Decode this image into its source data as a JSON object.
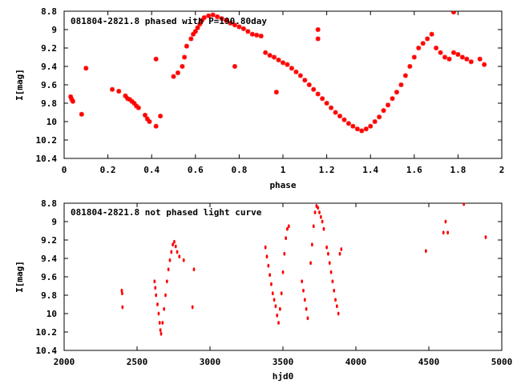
{
  "chart_data": [
    {
      "type": "scatter",
      "title": "081804-2821.8 phased with P=190.80day",
      "xlabel": "phase",
      "ylabel": "I[mag]",
      "xlim": [
        0,
        2
      ],
      "ylim": [
        10.4,
        8.8
      ],
      "y_inverted": true,
      "xticks": [
        "0",
        "0.2",
        "0.4",
        "0.6",
        "0.8",
        "1",
        "1.2",
        "1.4",
        "1.6",
        "1.8",
        "2"
      ],
      "yticks": [
        "8.8",
        "9",
        "9.2",
        "9.4",
        "9.6",
        "9.8",
        "10",
        "10.2",
        "10.4"
      ],
      "marker": "star",
      "color": "#ff0000",
      "grid": false,
      "points": [
        [
          0.03,
          9.73
        ],
        [
          0.035,
          9.76
        ],
        [
          0.04,
          9.78
        ],
        [
          0.08,
          9.92
        ],
        [
          0.1,
          9.42
        ],
        [
          0.22,
          9.65
        ],
        [
          0.25,
          9.67
        ],
        [
          0.28,
          9.72
        ],
        [
          0.29,
          9.75
        ],
        [
          0.3,
          9.76
        ],
        [
          0.31,
          9.78
        ],
        [
          0.32,
          9.8
        ],
        [
          0.33,
          9.83
        ],
        [
          0.34,
          9.85
        ],
        [
          0.37,
          9.93
        ],
        [
          0.38,
          9.97
        ],
        [
          0.39,
          10.0
        ],
        [
          0.42,
          10.05
        ],
        [
          0.42,
          9.32
        ],
        [
          0.44,
          9.94
        ],
        [
          0.5,
          9.51
        ],
        [
          0.52,
          9.47
        ],
        [
          0.54,
          9.4
        ],
        [
          0.55,
          9.3
        ],
        [
          0.56,
          9.18
        ],
        [
          0.58,
          9.1
        ],
        [
          0.59,
          9.05
        ],
        [
          0.6,
          9.02
        ],
        [
          0.61,
          8.98
        ],
        [
          0.62,
          8.94
        ],
        [
          0.63,
          8.9
        ],
        [
          0.64,
          8.87
        ],
        [
          0.66,
          8.85
        ],
        [
          0.68,
          8.84
        ],
        [
          0.7,
          8.86
        ],
        [
          0.72,
          8.88
        ],
        [
          0.74,
          8.9
        ],
        [
          0.76,
          8.93
        ],
        [
          0.78,
          8.95
        ],
        [
          0.8,
          8.97
        ],
        [
          0.82,
          8.99
        ],
        [
          0.84,
          9.02
        ],
        [
          0.86,
          9.05
        ],
        [
          0.88,
          9.06
        ],
        [
          0.9,
          9.07
        ],
        [
          0.78,
          9.4
        ],
        [
          0.92,
          9.25
        ],
        [
          0.94,
          9.28
        ],
        [
          0.96,
          9.3
        ],
        [
          0.97,
          9.68
        ],
        [
          0.98,
          9.33
        ],
        [
          1.0,
          9.36
        ],
        [
          1.02,
          9.38
        ],
        [
          1.04,
          9.42
        ],
        [
          1.06,
          9.46
        ],
        [
          1.08,
          9.5
        ],
        [
          1.1,
          9.55
        ],
        [
          1.12,
          9.6
        ],
        [
          1.14,
          9.65
        ],
        [
          1.16,
          9.7
        ],
        [
          1.16,
          9.0
        ],
        [
          1.16,
          9.1
        ],
        [
          1.18,
          9.75
        ],
        [
          1.2,
          9.8
        ],
        [
          1.22,
          9.85
        ],
        [
          1.24,
          9.9
        ],
        [
          1.26,
          9.94
        ],
        [
          1.28,
          9.98
        ],
        [
          1.3,
          10.02
        ],
        [
          1.32,
          10.05
        ],
        [
          1.34,
          10.08
        ],
        [
          1.36,
          10.1
        ],
        [
          1.38,
          10.08
        ],
        [
          1.4,
          10.05
        ],
        [
          1.42,
          10.0
        ],
        [
          1.44,
          9.95
        ],
        [
          1.46,
          9.88
        ],
        [
          1.48,
          9.82
        ],
        [
          1.5,
          9.75
        ],
        [
          1.52,
          9.68
        ],
        [
          1.54,
          9.6
        ],
        [
          1.56,
          9.5
        ],
        [
          1.58,
          9.4
        ],
        [
          1.6,
          9.3
        ],
        [
          1.62,
          9.2
        ],
        [
          1.64,
          9.15
        ],
        [
          1.66,
          9.1
        ],
        [
          1.68,
          9.05
        ],
        [
          1.7,
          9.2
        ],
        [
          1.72,
          9.25
        ],
        [
          1.74,
          9.3
        ],
        [
          1.76,
          9.32
        ],
        [
          1.78,
          9.25
        ],
        [
          1.78,
          8.81
        ],
        [
          1.8,
          9.27
        ],
        [
          1.82,
          9.3
        ],
        [
          1.84,
          9.32
        ],
        [
          1.86,
          9.35
        ],
        [
          1.9,
          9.32
        ],
        [
          1.92,
          9.38
        ]
      ]
    },
    {
      "type": "scatter",
      "title": "081804-2821.8 not phased light curve",
      "xlabel": "hjd0",
      "ylabel": "I[mag]",
      "xlim": [
        2000,
        5000
      ],
      "ylim": [
        10.4,
        8.8
      ],
      "y_inverted": true,
      "xticks": [
        "2000",
        "2500",
        "3000",
        "3500",
        "4000",
        "4500",
        "5000"
      ],
      "yticks": [
        "8.8",
        "9",
        "9.2",
        "9.4",
        "9.6",
        "9.8",
        "10",
        "10.2",
        "10.4"
      ],
      "marker": "dot",
      "color": "#ff0000",
      "grid": false,
      "points": [
        [
          2395,
          9.75
        ],
        [
          2398,
          9.78
        ],
        [
          2400,
          9.93
        ],
        [
          2620,
          9.65
        ],
        [
          2625,
          9.72
        ],
        [
          2630,
          9.8
        ],
        [
          2640,
          9.9
        ],
        [
          2648,
          10.0
        ],
        [
          2655,
          10.1
        ],
        [
          2660,
          10.18
        ],
        [
          2665,
          10.22
        ],
        [
          2675,
          10.1
        ],
        [
          2685,
          9.95
        ],
        [
          2695,
          9.8
        ],
        [
          2705,
          9.65
        ],
        [
          2715,
          9.52
        ],
        [
          2725,
          9.42
        ],
        [
          2735,
          9.33
        ],
        [
          2745,
          9.25
        ],
        [
          2755,
          9.22
        ],
        [
          2765,
          9.27
        ],
        [
          2775,
          9.33
        ],
        [
          2790,
          9.38
        ],
        [
          2820,
          9.42
        ],
        [
          2880,
          9.93
        ],
        [
          2890,
          9.52
        ],
        [
          3380,
          9.28
        ],
        [
          3390,
          9.38
        ],
        [
          3400,
          9.48
        ],
        [
          3410,
          9.58
        ],
        [
          3420,
          9.68
        ],
        [
          3430,
          9.78
        ],
        [
          3440,
          9.85
        ],
        [
          3450,
          9.92
        ],
        [
          3460,
          10.02
        ],
        [
          3470,
          10.1
        ],
        [
          3480,
          9.95
        ],
        [
          3490,
          9.78
        ],
        [
          3500,
          9.55
        ],
        [
          3510,
          9.35
        ],
        [
          3520,
          9.18
        ],
        [
          3530,
          9.08
        ],
        [
          3540,
          9.05
        ],
        [
          3630,
          9.65
        ],
        [
          3640,
          9.75
        ],
        [
          3650,
          9.85
        ],
        [
          3660,
          9.95
        ],
        [
          3670,
          10.05
        ],
        [
          3690,
          9.45
        ],
        [
          3700,
          9.25
        ],
        [
          3710,
          9.05
        ],
        [
          3720,
          8.9
        ],
        [
          3730,
          8.83
        ],
        [
          3740,
          8.85
        ],
        [
          3750,
          8.9
        ],
        [
          3760,
          8.95
        ],
        [
          3770,
          9.0
        ],
        [
          3780,
          9.08
        ],
        [
          3800,
          9.28
        ],
        [
          3810,
          9.35
        ],
        [
          3820,
          9.45
        ],
        [
          3830,
          9.55
        ],
        [
          3840,
          9.65
        ],
        [
          3850,
          9.75
        ],
        [
          3860,
          9.85
        ],
        [
          3870,
          9.92
        ],
        [
          3880,
          10.0
        ],
        [
          3890,
          9.35
        ],
        [
          3900,
          9.3
        ],
        [
          4480,
          9.32
        ],
        [
          4600,
          9.12
        ],
        [
          4615,
          9.0
        ],
        [
          4630,
          9.12
        ],
        [
          4740,
          8.81
        ],
        [
          4890,
          9.17
        ]
      ]
    }
  ]
}
